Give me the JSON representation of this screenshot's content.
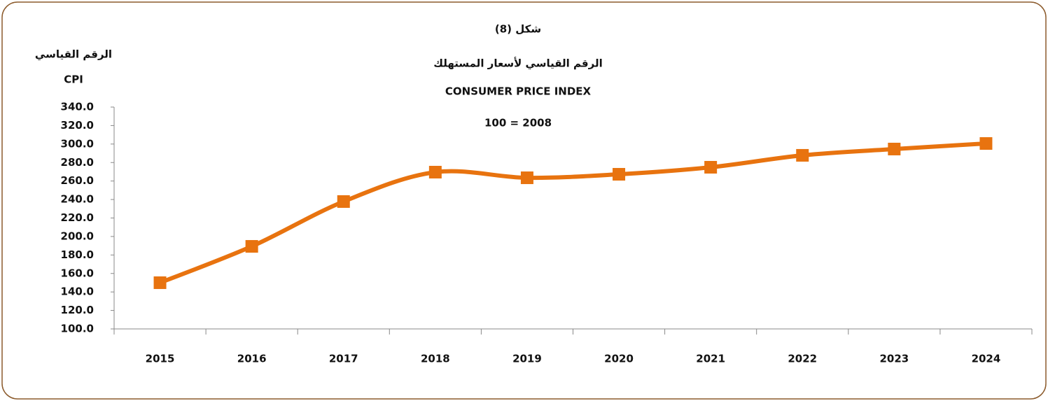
{
  "chart_data": {
    "type": "line",
    "title": "شكل (8)",
    "subtitle": [
      "الرقم القياسي لأسعار المستهلك",
      "CONSUMER PRICE INDEX",
      "100 = 2008"
    ],
    "y_label": [
      "الرقم القياسي",
      "CPI"
    ],
    "categories": [
      "2015",
      "2016",
      "2017",
      "2018",
      "2019",
      "2020",
      "2021",
      "2022",
      "2023",
      "2024"
    ],
    "values": [
      150.0,
      189.3,
      237.8,
      269.6,
      263.5,
      267.3,
      274.9,
      287.8,
      294.6,
      300.6
    ],
    "color": "#e8730f",
    "smooth": true,
    "marker": "square",
    "ylim": [
      100,
      340
    ],
    "yticks": [
      {
        "value": 100,
        "label": "100.0"
      },
      {
        "value": 120,
        "label": "120.0"
      },
      {
        "value": 140,
        "label": "140.0"
      },
      {
        "value": 160,
        "label": "160.0"
      },
      {
        "value": 180,
        "label": "180.0"
      },
      {
        "value": 200,
        "label": "200.0"
      },
      {
        "value": 220,
        "label": "220.0"
      },
      {
        "value": 240,
        "label": "240.0"
      },
      {
        "value": 260,
        "label": "260.0"
      },
      {
        "value": 280,
        "label": "280.0"
      },
      {
        "value": 300,
        "label": "300.0"
      },
      {
        "value": 320,
        "label": "320.0"
      },
      {
        "value": 340,
        "label": "340.0"
      }
    ],
    "grid": false
  }
}
